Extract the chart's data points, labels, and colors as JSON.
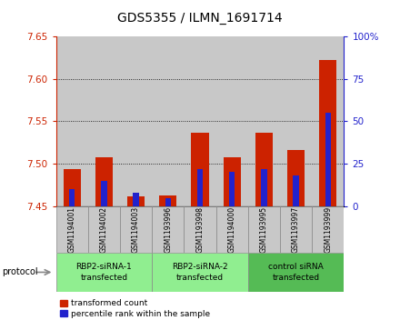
{
  "title": "GDS5355 / ILMN_1691714",
  "samples": [
    "GSM1194001",
    "GSM1194002",
    "GSM1194003",
    "GSM1193996",
    "GSM1193998",
    "GSM1194000",
    "GSM1193995",
    "GSM1193997",
    "GSM1193999"
  ],
  "transformed_counts": [
    7.494,
    7.508,
    7.462,
    7.463,
    7.536,
    7.508,
    7.536,
    7.516,
    7.622
  ],
  "percentile_ranks": [
    10,
    15,
    8,
    5,
    22,
    20,
    22,
    18,
    55
  ],
  "ylim_left": [
    7.45,
    7.65
  ],
  "ylim_right": [
    0,
    100
  ],
  "yticks_left": [
    7.45,
    7.5,
    7.55,
    7.6,
    7.65
  ],
  "yticks_right": [
    0,
    25,
    50,
    75,
    100
  ],
  "bar_bottom": 7.45,
  "groups": [
    {
      "label": "RBP2-siRNA-1\ntransfected",
      "start": 0,
      "end": 2,
      "color": "#90EE90"
    },
    {
      "label": "RBP2-siRNA-2\ntransfected",
      "start": 3,
      "end": 5,
      "color": "#90EE90"
    },
    {
      "label": "control siRNA\ntransfected",
      "start": 6,
      "end": 8,
      "color": "#55BB55"
    }
  ],
  "red_color": "#CC2200",
  "blue_color": "#2222CC",
  "left_axis_color": "#CC2200",
  "right_axis_color": "#2222CC",
  "bar_width": 0.55,
  "blue_bar_width": 0.18,
  "bg_sample": "#C8C8C8",
  "bg_white": "#FFFFFF"
}
